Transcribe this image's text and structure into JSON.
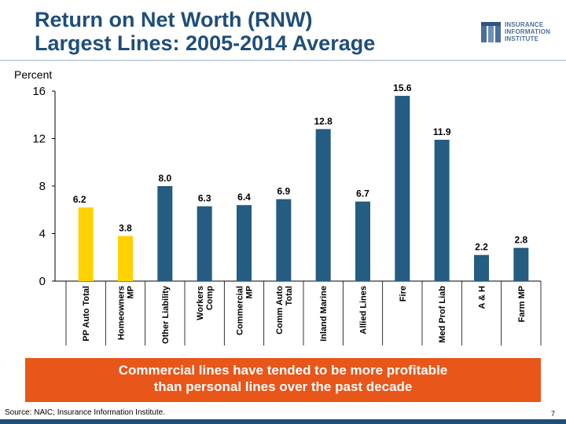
{
  "header": {
    "title_line1": "Return on Net Worth (RNW)",
    "title_line2": "Largest Lines: 2005-2014 Average",
    "logo_lines": [
      "INSURANCE",
      "INFORMATION",
      "INSTITUTE"
    ]
  },
  "chart_data": {
    "type": "bar",
    "ylabel": "Percent",
    "ylim": [
      0,
      16
    ],
    "yticks": [
      0,
      4,
      8,
      12,
      16
    ],
    "categories": [
      [
        "PP Auto Total"
      ],
      [
        "Homeowners",
        "MP"
      ],
      [
        "Other Liability"
      ],
      [
        "Workers",
        "Comp"
      ],
      [
        "Commercial",
        "MP"
      ],
      [
        "Comm Auto",
        "Total"
      ],
      [
        "Inland Marine"
      ],
      [
        "Allied Lines"
      ],
      [
        "Fire"
      ],
      [
        "Med Prof Liab"
      ],
      [
        "A & H"
      ],
      [
        "Farm MP"
      ]
    ],
    "values": [
      6.2,
      3.8,
      8.0,
      6.3,
      6.4,
      6.9,
      12.8,
      6.7,
      15.6,
      11.9,
      2.2,
      2.8
    ],
    "value_labels": [
      "6.2",
      "3.8",
      "8.0",
      "6.3",
      "6.4",
      "6.9",
      "12.8",
      "6.7",
      "15.6",
      "11.9",
      "2.2",
      "2.8"
    ],
    "bar_colors": [
      "#ffd100",
      "#ffd100",
      "#245c82",
      "#245c82",
      "#245c82",
      "#245c82",
      "#245c82",
      "#245c82",
      "#245c82",
      "#245c82",
      "#245c82",
      "#245c82"
    ],
    "grid": false
  },
  "callout": {
    "line1": "Commercial lines have tended to be more profitable",
    "line2": "than personal lines over the past decade"
  },
  "footer": {
    "source": "Source: NAIC; Insurance Information Institute.",
    "page_number": "7"
  }
}
